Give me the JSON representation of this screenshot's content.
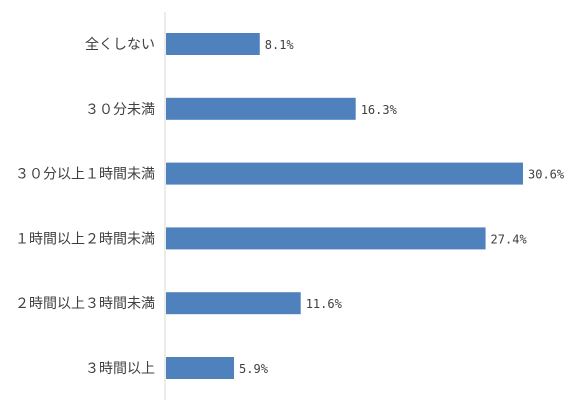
{
  "chart_data": {
    "type": "bar",
    "orientation": "horizontal",
    "categories": [
      "全くしない",
      "３０分未満",
      "３０分以上１時間未満",
      "１時間以上２時間未満",
      "２時間以上３時間未満",
      "３時間以上"
    ],
    "values": [
      8.1,
      16.3,
      30.6,
      27.4,
      11.6,
      5.9
    ],
    "value_labels": [
      "8.1%",
      "16.3%",
      "30.6%",
      "27.4%",
      "11.6%",
      "5.9%"
    ],
    "unit": "%",
    "xlim": [
      0,
      30.6
    ],
    "grid": false,
    "legend": "none",
    "bar_color": "#4f81bd",
    "axis_color": "#d9d9d9"
  }
}
